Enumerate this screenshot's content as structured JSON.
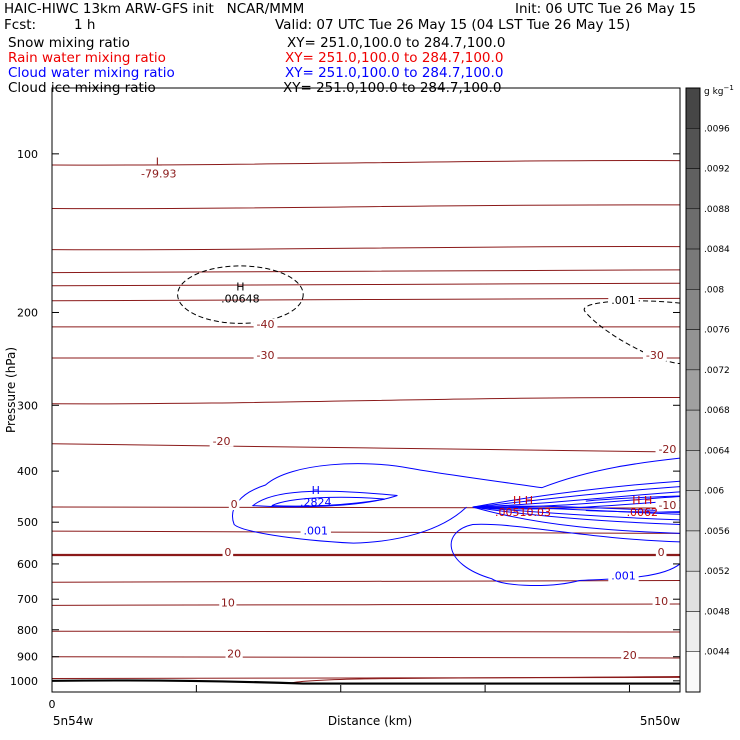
{
  "header": {
    "title_left": "HAIC-HIWC 13km ARW-GFS init   NCAR/MMM",
    "init": "Init: 06 UTC Tue 26 May 15",
    "fcst_label": "Fcst:",
    "fcst_value": "1 h",
    "valid": "Valid: 07 UTC Tue 26 May 15 (04 LST Tue 26 May 15)",
    "fields": [
      {
        "name": "Snow mixing ratio",
        "xy": "XY= 251.0,100.0 to 284.7,100.0",
        "color": "#000000"
      },
      {
        "name": "Rain water mixing ratio",
        "xy": "XY= 251.0,100.0 to 284.7,100.0",
        "color": "#ff0000"
      },
      {
        "name": "Cloud water mixing ratio",
        "xy": "XY= 251.0,100.0 to 284.7,100.0",
        "color": "#0000ff"
      },
      {
        "name": "Cloud ice mixing ratio",
        "xy": "XY= 251.0,100.0 to 284.7,100.0",
        "color": "#000000"
      }
    ]
  },
  "chart_data": {
    "type": "cross-section contour",
    "xlabel": "Distance (km)",
    "ylabel": "Pressure (hPa)",
    "x_tick_labels": [
      "0"
    ],
    "x_end_labels": [
      "5n54w",
      "5n50w"
    ],
    "y_log_scale": true,
    "ylim": [
      1050,
      75
    ],
    "y_ticks": [
      100,
      200,
      300,
      400,
      500,
      600,
      700,
      800,
      900,
      1000
    ],
    "colorbar": {
      "unit": "g kg",
      "unit_exp": "−1",
      "labels": [
        ".0096",
        ".0092",
        ".0088",
        ".0084",
        ".008",
        ".0076",
        ".0072",
        ".0068",
        ".0064",
        ".006",
        ".0056",
        ".0052",
        ".0048",
        ".0044"
      ]
    },
    "temperature_labels": [
      {
        "text": "-40",
        "p": 213,
        "x": 0.34
      },
      {
        "text": "-30",
        "p": 244,
        "x": 0.34
      },
      {
        "text": "-30",
        "p": 244,
        "x": 0.96
      },
      {
        "text": "-20",
        "p": 355,
        "x": 0.27
      },
      {
        "text": "-20",
        "p": 368,
        "x": 0.98
      },
      {
        "text": "0",
        "p": 468,
        "x": 0.29
      },
      {
        "text": "-10",
        "p": 470,
        "x": 0.98
      },
      {
        "text": "0",
        "p": 577,
        "x": 0.28
      },
      {
        "text": "0",
        "p": 577,
        "x": 0.97
      },
      {
        "text": "10",
        "p": 719,
        "x": 0.28
      },
      {
        "text": "10",
        "p": 715,
        "x": 0.97
      },
      {
        "text": "20",
        "p": 900,
        "x": 0.29
      },
      {
        "text": "20",
        "p": 905,
        "x": 0.92
      }
    ],
    "extrema": [
      {
        "type": "L",
        "value": "-79.93",
        "p": 107,
        "x": 0.17,
        "color": "#8b1a1a"
      },
      {
        "type": "H",
        "value": ".00648",
        "p": 185,
        "x": 0.3,
        "color": "#000000"
      },
      {
        "type": "H",
        "value": ".2824",
        "p": 450,
        "x": 0.42,
        "color": "#0000ff"
      },
      {
        "type": "H H",
        "value": ".00510.03",
        "p": 470,
        "x": 0.75,
        "color": "#cc0000"
      },
      {
        "type": "H H",
        "value": ".0062",
        "p": 470,
        "x": 0.94,
        "color": "#cc0000"
      }
    ],
    "cloud_water_labels": [
      {
        "text": ".001",
        "p": 525,
        "x": 0.42
      },
      {
        "text": ".001",
        "p": 640,
        "x": 0.91
      }
    ],
    "snow_labels": [
      {
        "text": ".001",
        "p": 192,
        "x": 0.91
      }
    ],
    "series": [
      {
        "name": "Cloud water mixing ratio",
        "color": "#0000ff"
      },
      {
        "name": "Temperature",
        "color": "#8b1a1a"
      },
      {
        "name": "Snow mixing ratio",
        "color": "#000000"
      }
    ]
  }
}
